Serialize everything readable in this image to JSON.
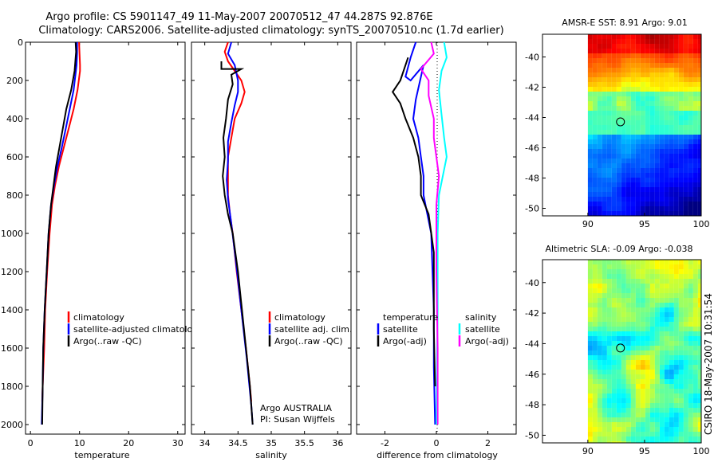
{
  "title": {
    "line1": "Argo profile: CS 5901147_49 11-May-2007 20070512_47 44.287S 92.876E",
    "line2": "Climatology: CARS2006. Satellite-adjusted climatology: synTS_20070510.nc (1.7d earlier)"
  },
  "side_label": "CSIRO 18-May-2007 10:31:54",
  "colors": {
    "climatology": "#ff0000",
    "satellite": "#0000ff",
    "argo": "#000000",
    "sal_satellite": "#00ffff",
    "sal_argo": "#ff00ff"
  },
  "chart_data": [
    {
      "type": "line",
      "name": "temperature-profile",
      "xlabel": "temperature",
      "ylabel": "",
      "xlim": [
        -1,
        31.5
      ],
      "ylim": [
        2050,
        0
      ],
      "xticks": [
        "0",
        "10",
        "20",
        "30"
      ],
      "xtick_values": [
        0,
        10,
        20,
        30
      ],
      "yticks": [
        "0",
        "200",
        "400",
        "600",
        "800",
        "1000",
        "1200",
        "1400",
        "1600",
        "1800",
        "2000"
      ],
      "ytick_values": [
        0,
        200,
        400,
        600,
        800,
        1000,
        1200,
        1400,
        1600,
        1800,
        2000
      ],
      "legend": [
        "climatology",
        "satellite-adjusted climatology",
        "Argo(..raw -QC)"
      ],
      "legend_position": "lower-right",
      "series": [
        {
          "name": "climatology",
          "color_key": "climatology",
          "points": [
            [
              9.9,
              0
            ],
            [
              10.0,
              60
            ],
            [
              10.1,
              120
            ],
            [
              10.1,
              150
            ],
            [
              9.6,
              250
            ],
            [
              8.8,
              350
            ],
            [
              7.8,
              450
            ],
            [
              6.8,
              550
            ],
            [
              5.8,
              650
            ],
            [
              5.0,
              750
            ],
            [
              4.4,
              850
            ],
            [
              3.9,
              1000
            ],
            [
              3.4,
              1200
            ],
            [
              3.0,
              1400
            ],
            [
              2.8,
              1600
            ],
            [
              2.5,
              1800
            ],
            [
              2.4,
              1880
            ]
          ]
        },
        {
          "name": "satellite-adjusted climatology",
          "color_key": "satellite",
          "points": [
            [
              9.5,
              0
            ],
            [
              9.5,
              60
            ],
            [
              9.4,
              120
            ],
            [
              8.8,
              250
            ],
            [
              8.0,
              350
            ],
            [
              7.2,
              450
            ],
            [
              6.4,
              550
            ],
            [
              5.5,
              650
            ],
            [
              4.8,
              750
            ],
            [
              4.2,
              850
            ],
            [
              3.7,
              1000
            ],
            [
              3.3,
              1200
            ],
            [
              2.9,
              1400
            ],
            [
              2.6,
              1600
            ],
            [
              2.5,
              1800
            ],
            [
              2.3,
              2000
            ]
          ]
        },
        {
          "name": "Argo(..raw -QC)",
          "color_key": "argo",
          "points": [
            [
              9.2,
              0
            ],
            [
              9.3,
              50
            ],
            [
              9.0,
              150
            ],
            [
              8.3,
              250
            ],
            [
              7.3,
              350
            ],
            [
              6.6,
              450
            ],
            [
              5.9,
              550
            ],
            [
              5.2,
              650
            ],
            [
              4.7,
              750
            ],
            [
              4.2,
              850
            ],
            [
              3.7,
              1000
            ],
            [
              3.3,
              1200
            ],
            [
              2.9,
              1400
            ],
            [
              2.6,
              1600
            ],
            [
              2.5,
              1800
            ],
            [
              2.4,
              2000
            ]
          ]
        }
      ]
    },
    {
      "type": "line",
      "name": "salinity-profile",
      "xlabel": "salinity",
      "xlim": [
        33.8,
        36.2
      ],
      "ylim": [
        2050,
        0
      ],
      "xticks": [
        "34",
        "34.5",
        "35",
        "35.5",
        "36"
      ],
      "xtick_values": [
        34,
        34.5,
        35,
        35.5,
        36
      ],
      "legend": [
        "climatology",
        "satellite adj. clim.",
        "Argo(..raw -QC)"
      ],
      "legend_position": "lower-right",
      "annotation_lines": [
        "Argo AUSTRALIA",
        "PI: Susan Wijffels"
      ],
      "series": [
        {
          "name": "climatology",
          "color_key": "climatology",
          "points": [
            [
              34.35,
              0
            ],
            [
              34.3,
              50
            ],
            [
              34.35,
              100
            ],
            [
              34.45,
              150
            ],
            [
              34.55,
              200
            ],
            [
              34.6,
              260
            ],
            [
              34.55,
              320
            ],
            [
              34.45,
              400
            ],
            [
              34.4,
              500
            ],
            [
              34.35,
              600
            ],
            [
              34.35,
              700
            ],
            [
              34.35,
              800
            ],
            [
              34.38,
              900
            ],
            [
              34.42,
              1000
            ],
            [
              34.48,
              1200
            ],
            [
              34.55,
              1400
            ],
            [
              34.62,
              1600
            ],
            [
              34.68,
              1800
            ],
            [
              34.7,
              1880
            ]
          ]
        },
        {
          "name": "satellite adj. clim.",
          "color_key": "satellite",
          "points": [
            [
              34.4,
              0
            ],
            [
              34.35,
              60
            ],
            [
              34.45,
              120
            ],
            [
              34.5,
              200
            ],
            [
              34.5,
              260
            ],
            [
              34.45,
              330
            ],
            [
              34.4,
              420
            ],
            [
              34.35,
              520
            ],
            [
              34.35,
              620
            ],
            [
              34.33,
              720
            ],
            [
              34.35,
              820
            ],
            [
              34.4,
              950
            ],
            [
              34.47,
              1150
            ],
            [
              34.55,
              1400
            ],
            [
              34.63,
              1650
            ],
            [
              34.7,
              1900
            ],
            [
              34.72,
              2000
            ]
          ]
        },
        {
          "name": "Argo(..raw -QC)",
          "color_key": "argo",
          "points": [
            [
              34.25,
              100
            ],
            [
              34.25,
              140
            ],
            [
              34.55,
              140
            ],
            [
              34.4,
              170
            ],
            [
              34.42,
              220
            ],
            [
              34.35,
              300
            ],
            [
              34.32,
              400
            ],
            [
              34.28,
              500
            ],
            [
              34.3,
              600
            ],
            [
              34.27,
              700
            ],
            [
              34.3,
              800
            ],
            [
              34.35,
              900
            ],
            [
              34.42,
              1000
            ],
            [
              34.5,
              1200
            ],
            [
              34.56,
              1400
            ],
            [
              34.62,
              1600
            ],
            [
              34.68,
              1800
            ],
            [
              34.72,
              2000
            ]
          ]
        }
      ]
    },
    {
      "type": "line",
      "name": "difference-profile",
      "xlabel": "difference from climatology",
      "xlim": [
        -3.1,
        3.1
      ],
      "ylim": [
        2050,
        0
      ],
      "xticks": [
        "-2",
        "0",
        "2"
      ],
      "xtick_values": [
        -2,
        0,
        2
      ],
      "legend_left_title": "temperature",
      "legend_left": [
        "satellite",
        "Argo(-adj)"
      ],
      "legend_right_title": "salinity",
      "legend_right": [
        "satellite",
        "Argo(-adj)"
      ],
      "series": [
        {
          "name": "temperature satellite",
          "color_key": "satellite",
          "points": [
            [
              -0.8,
              0
            ],
            [
              -1.0,
              80
            ],
            [
              -1.2,
              180
            ],
            [
              -1.0,
              200
            ],
            [
              -0.5,
              120
            ],
            [
              -0.8,
              300
            ],
            [
              -0.9,
              400
            ],
            [
              -0.7,
              500
            ],
            [
              -0.6,
              600
            ],
            [
              -0.5,
              700
            ],
            [
              -0.5,
              800
            ],
            [
              -0.2,
              1000
            ],
            [
              -0.1,
              1400
            ],
            [
              -0.1,
              1700
            ],
            [
              -0.05,
              2000
            ]
          ]
        },
        {
          "name": "temperature Argo(-adj)",
          "color_key": "argo",
          "points": [
            [
              -1.1,
              80
            ],
            [
              -1.4,
              200
            ],
            [
              -1.7,
              260
            ],
            [
              -1.4,
              320
            ],
            [
              -1.2,
              400
            ],
            [
              -0.9,
              500
            ],
            [
              -0.7,
              600
            ],
            [
              -0.6,
              700
            ],
            [
              -0.6,
              800
            ],
            [
              -0.3,
              900
            ],
            [
              -0.1,
              1100
            ],
            [
              -0.1,
              1500
            ],
            [
              -0.05,
              1800
            ]
          ]
        },
        {
          "name": "salinity satellite",
          "color_key": "sal_satellite",
          "points": [
            [
              0.3,
              0
            ],
            [
              0.4,
              80
            ],
            [
              0.2,
              150
            ],
            [
              0.1,
              250
            ],
            [
              0.2,
              380
            ],
            [
              0.3,
              500
            ],
            [
              0.4,
              600
            ],
            [
              0.1,
              800
            ],
            [
              0.05,
              1000
            ],
            [
              0.05,
              1400
            ],
            [
              0.0,
              2000
            ]
          ]
        },
        {
          "name": "salinity Argo(-adj)",
          "color_key": "sal_argo",
          "points": [
            [
              -0.2,
              0
            ],
            [
              -0.1,
              60
            ],
            [
              -0.6,
              140
            ],
            [
              -0.3,
              200
            ],
            [
              -0.3,
              280
            ],
            [
              -0.1,
              400
            ],
            [
              -0.1,
              500
            ],
            [
              0.0,
              600
            ],
            [
              0.1,
              700
            ],
            [
              0.0,
              850
            ],
            [
              0.0,
              1200
            ],
            [
              0.05,
              1600
            ],
            [
              0.05,
              2000
            ]
          ]
        }
      ]
    },
    {
      "type": "heatmap",
      "name": "sst-map",
      "title": "AMSR-E SST: 8.91  Argo: 9.01",
      "xlim": [
        86,
        100
      ],
      "ylim": [
        -50.5,
        -38.5
      ],
      "xticks": [
        "90",
        "95",
        "100"
      ],
      "xtick_values": [
        90,
        95,
        100
      ],
      "yticks": [
        "-40",
        "-42",
        "-44",
        "-46",
        "-48",
        "-50"
      ],
      "ytick_values": [
        -40,
        -42,
        -44,
        -46,
        -48,
        -50
      ],
      "data_extent_lon": [
        90,
        100
      ],
      "marker": {
        "lon": 92.876,
        "lat": -44.287
      }
    },
    {
      "type": "heatmap",
      "name": "sla-map",
      "title": "Altimetric SLA: -0.09  Argo: -0.038",
      "xlim": [
        86,
        100
      ],
      "ylim": [
        -50.5,
        -38.5
      ],
      "xticks": [
        "90",
        "95",
        "100"
      ],
      "xtick_values": [
        90,
        95,
        100
      ],
      "yticks": [
        "-40",
        "-42",
        "-44",
        "-46",
        "-48",
        "-50"
      ],
      "ytick_values": [
        -40,
        -42,
        -44,
        -46,
        -48,
        -50
      ],
      "data_extent_lon": [
        90,
        100
      ],
      "marker": {
        "lon": 92.876,
        "lat": -44.287
      }
    }
  ]
}
